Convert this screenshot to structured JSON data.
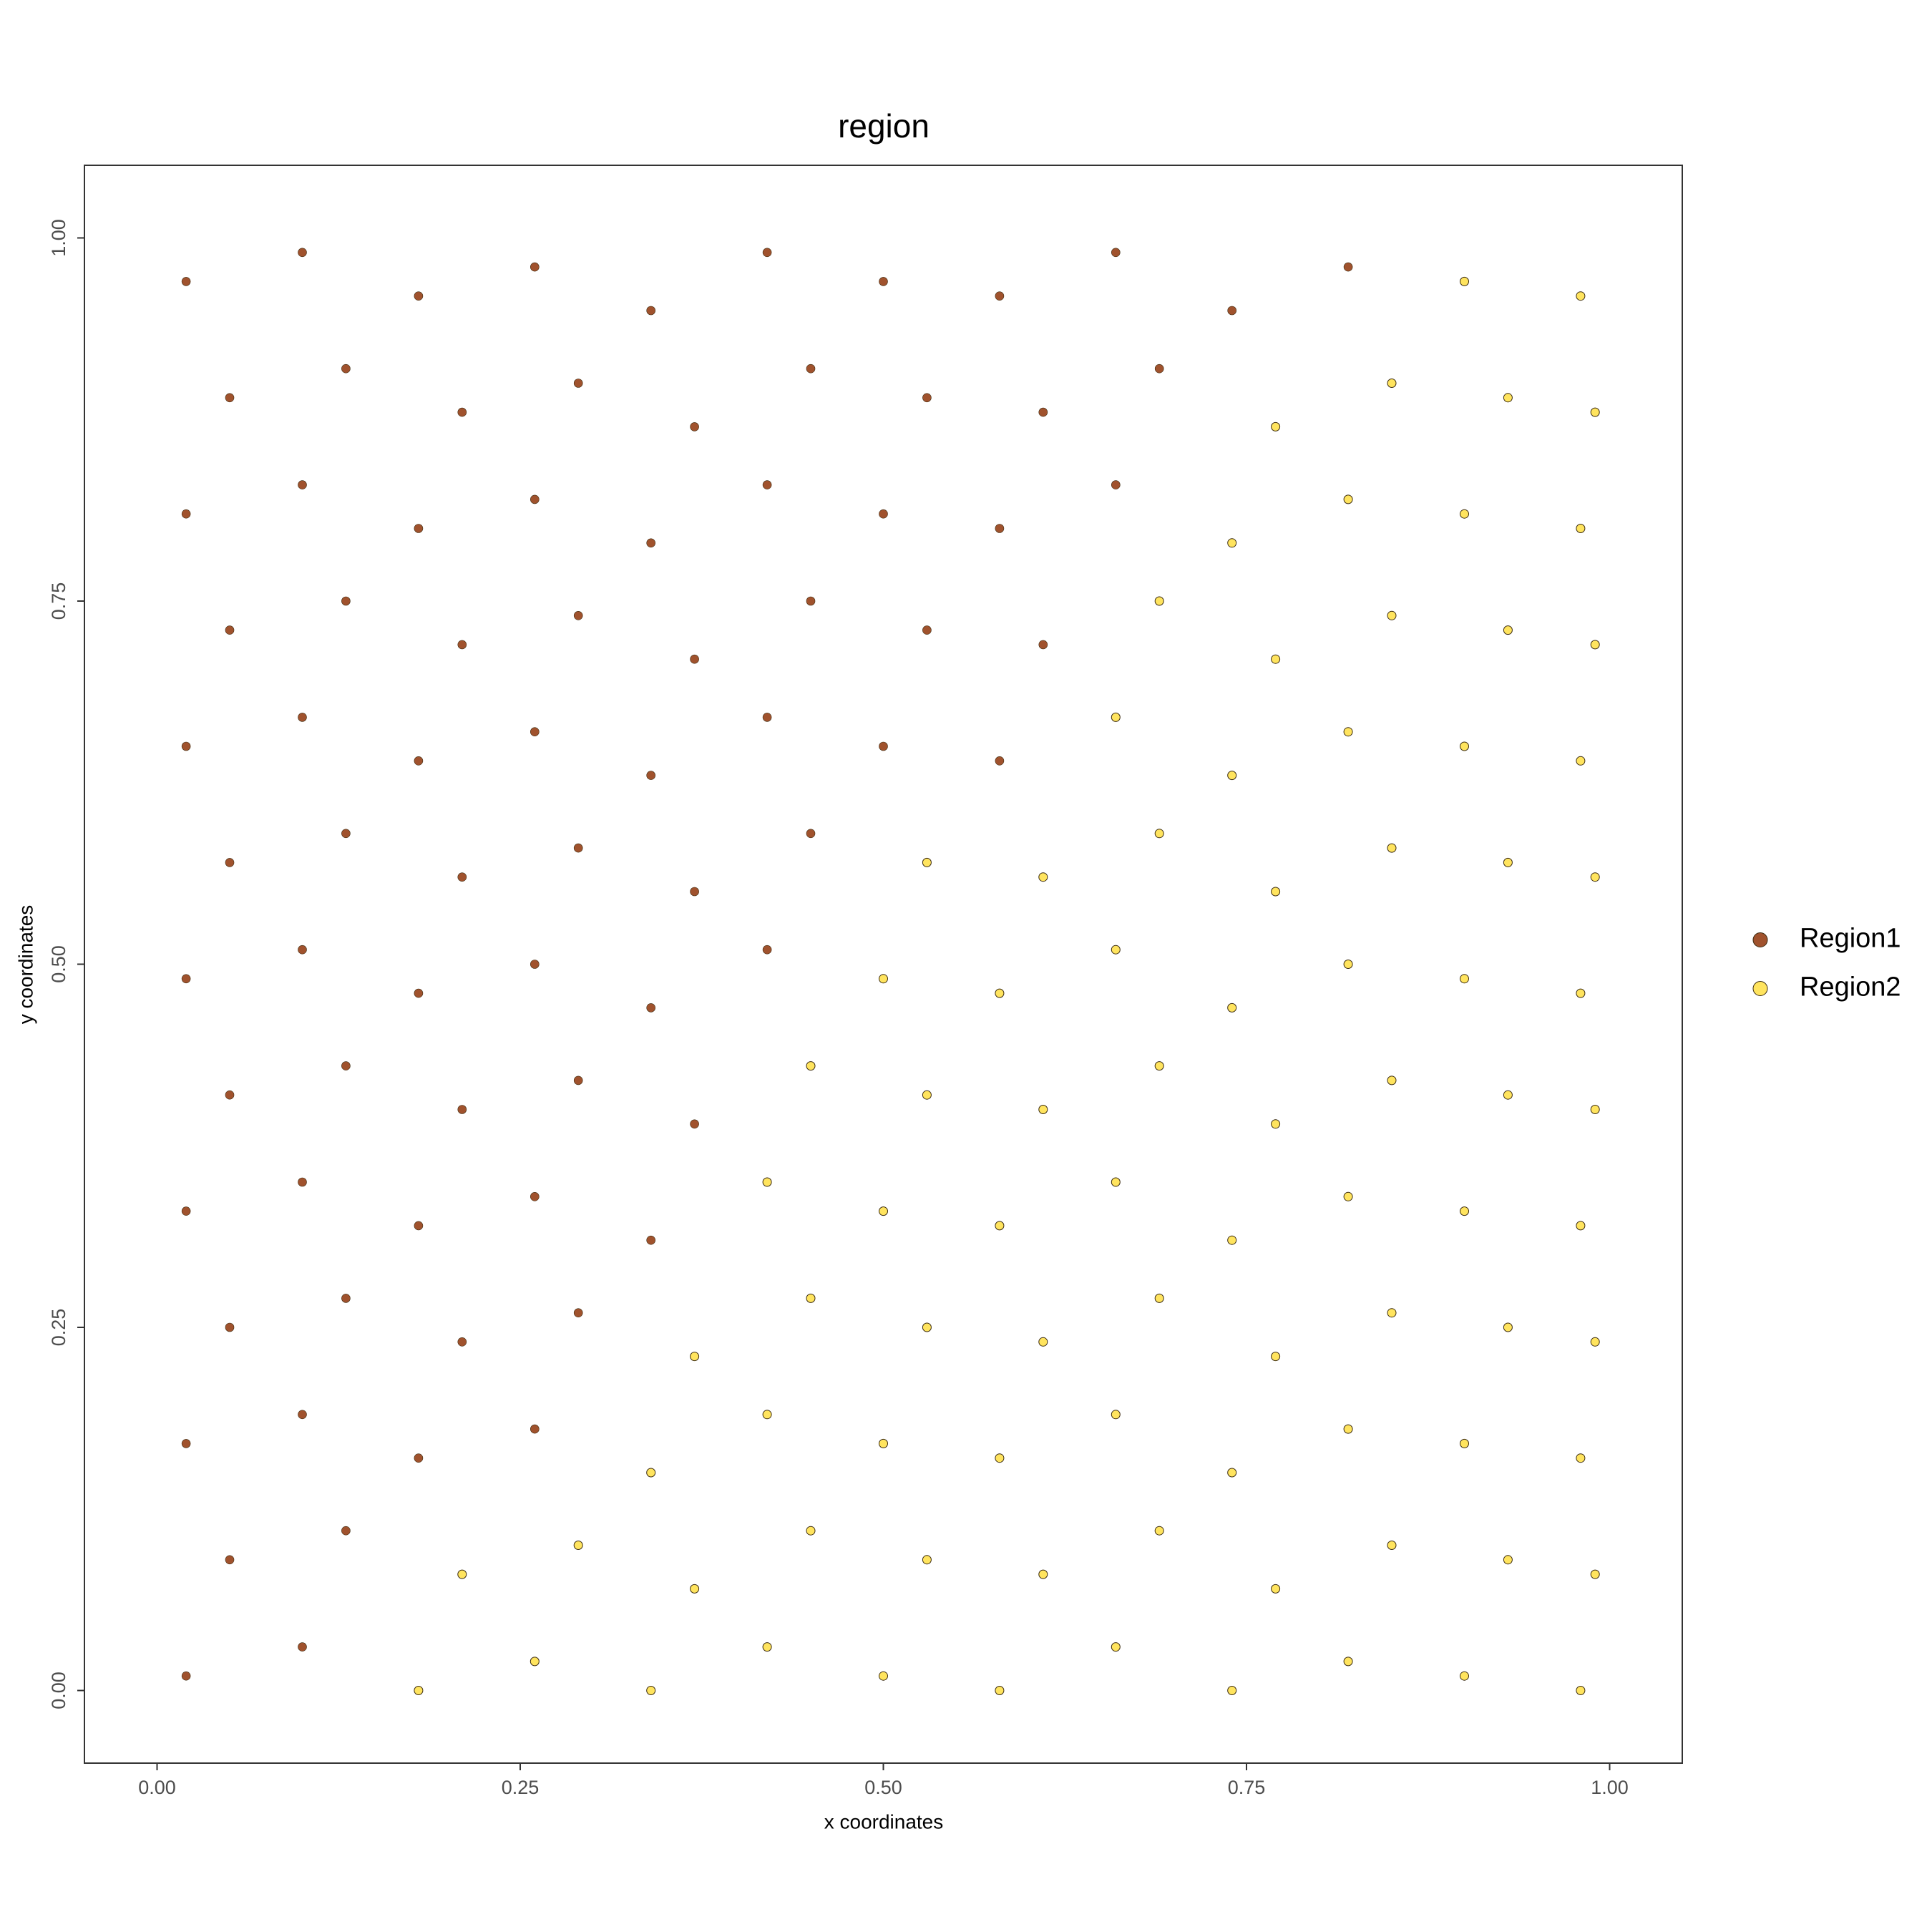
{
  "chart_data": {
    "type": "scatter",
    "title": "region",
    "xlabel": "x coordinates",
    "ylabel": "y coordinates",
    "xlim": [
      -0.05,
      1.05
    ],
    "ylim": [
      -0.05,
      1.05
    ],
    "xticks": [
      {
        "value": 0,
        "label": "0.00"
      },
      {
        "value": 0.25,
        "label": "0.25"
      },
      {
        "value": 0.5,
        "label": "0.50"
      },
      {
        "value": 0.75,
        "label": "0.75"
      },
      {
        "value": 1,
        "label": "1.00"
      }
    ],
    "yticks": [
      {
        "value": 0,
        "label": "0.00"
      },
      {
        "value": 0.25,
        "label": "0.25"
      },
      {
        "value": 0.5,
        "label": "0.50"
      },
      {
        "value": 0.75,
        "label": "0.75"
      },
      {
        "value": 1,
        "label": "1.00"
      }
    ],
    "grid": false,
    "legend": "right",
    "series": [
      {
        "name": "Region1",
        "color": "#a0522d",
        "x": [
          0.02,
          0.1,
          0.05,
          0.13,
          0.02,
          0.1,
          0.18,
          0.26,
          0.05,
          0.13,
          0.21,
          0.29,
          0.02,
          0.1,
          0.18,
          0.26,
          0.34,
          0.05,
          0.13,
          0.21,
          0.29,
          0.37,
          0.02,
          0.1,
          0.18,
          0.26,
          0.34,
          0.42,
          0.05,
          0.13,
          0.21,
          0.29,
          0.37,
          0.45,
          0.02,
          0.1,
          0.18,
          0.26,
          0.34,
          0.42,
          0.5,
          0.58,
          0.05,
          0.13,
          0.21,
          0.29,
          0.37,
          0.45,
          0.53,
          0.61,
          0.02,
          0.1,
          0.18,
          0.26,
          0.34,
          0.42,
          0.5,
          0.58,
          0.66,
          0.05,
          0.13,
          0.21,
          0.29,
          0.37,
          0.45,
          0.53,
          0.61,
          0.69,
          0.02,
          0.1,
          0.18,
          0.26,
          0.34,
          0.42,
          0.5,
          0.58,
          0.66,
          0.74,
          0.82
        ],
        "values": [
          0.01,
          0.03,
          0.09,
          0.11,
          0.17,
          0.19,
          0.16,
          0.18,
          0.25,
          0.27,
          0.24,
          0.26,
          0.33,
          0.35,
          0.32,
          0.34,
          0.31,
          0.41,
          0.43,
          0.4,
          0.42,
          0.39,
          0.49,
          0.51,
          0.48,
          0.5,
          0.47,
          0.51,
          0.57,
          0.59,
          0.56,
          0.58,
          0.55,
          0.59,
          0.65,
          0.67,
          0.64,
          0.66,
          0.63,
          0.67,
          0.65,
          0.64,
          0.73,
          0.75,
          0.72,
          0.74,
          0.71,
          0.75,
          0.73,
          0.72,
          0.81,
          0.83,
          0.8,
          0.82,
          0.79,
          0.83,
          0.81,
          0.8,
          0.83,
          0.89,
          0.91,
          0.88,
          0.9,
          0.87,
          0.91,
          0.89,
          0.88,
          0.91,
          0.97,
          0.99,
          0.96,
          0.98,
          0.95,
          0.99,
          0.97,
          0.96,
          0.99,
          0.95,
          0.98
        ]
      },
      {
        "name": "Region2",
        "color": "#ffe45e",
        "x": [
          0.18,
          0.26,
          0.34,
          0.42,
          0.5,
          0.58,
          0.66,
          0.74,
          0.82,
          0.9,
          0.98,
          0.21,
          0.29,
          0.37,
          0.45,
          0.53,
          0.61,
          0.69,
          0.77,
          0.85,
          0.93,
          0.99,
          0.34,
          0.42,
          0.5,
          0.58,
          0.66,
          0.74,
          0.82,
          0.9,
          0.98,
          0.37,
          0.45,
          0.53,
          0.61,
          0.69,
          0.77,
          0.85,
          0.93,
          0.99,
          0.42,
          0.5,
          0.58,
          0.66,
          0.74,
          0.82,
          0.9,
          0.98,
          0.45,
          0.53,
          0.61,
          0.69,
          0.77,
          0.85,
          0.93,
          0.99,
          0.5,
          0.58,
          0.66,
          0.74,
          0.82,
          0.9,
          0.98,
          0.53,
          0.61,
          0.69,
          0.77,
          0.85,
          0.93,
          0.99,
          0.66,
          0.74,
          0.82,
          0.9,
          0.98,
          0.69,
          0.77,
          0.85,
          0.93,
          0.99,
          0.74,
          0.82,
          0.9,
          0.98,
          0.77,
          0.85,
          0.93,
          0.99,
          0.9,
          0.98
        ],
        "values": [
          0.0,
          0.02,
          0.0,
          0.03,
          0.01,
          0.0,
          0.03,
          0.0,
          0.02,
          0.01,
          0.0,
          0.08,
          0.1,
          0.07,
          0.11,
          0.09,
          0.08,
          0.11,
          0.07,
          0.1,
          0.09,
          0.08,
          0.15,
          0.19,
          0.17,
          0.16,
          0.19,
          0.15,
          0.18,
          0.17,
          0.16,
          0.23,
          0.27,
          0.25,
          0.24,
          0.27,
          0.23,
          0.26,
          0.25,
          0.24,
          0.35,
          0.33,
          0.32,
          0.35,
          0.31,
          0.34,
          0.33,
          0.32,
          0.43,
          0.41,
          0.4,
          0.43,
          0.39,
          0.42,
          0.41,
          0.4,
          0.49,
          0.48,
          0.51,
          0.47,
          0.5,
          0.49,
          0.48,
          0.57,
          0.56,
          0.59,
          0.55,
          0.58,
          0.57,
          0.56,
          0.67,
          0.63,
          0.66,
          0.65,
          0.64,
          0.75,
          0.71,
          0.74,
          0.73,
          0.72,
          0.79,
          0.82,
          0.81,
          0.8,
          0.87,
          0.9,
          0.89,
          0.88,
          0.97,
          0.96
        ]
      }
    ]
  }
}
